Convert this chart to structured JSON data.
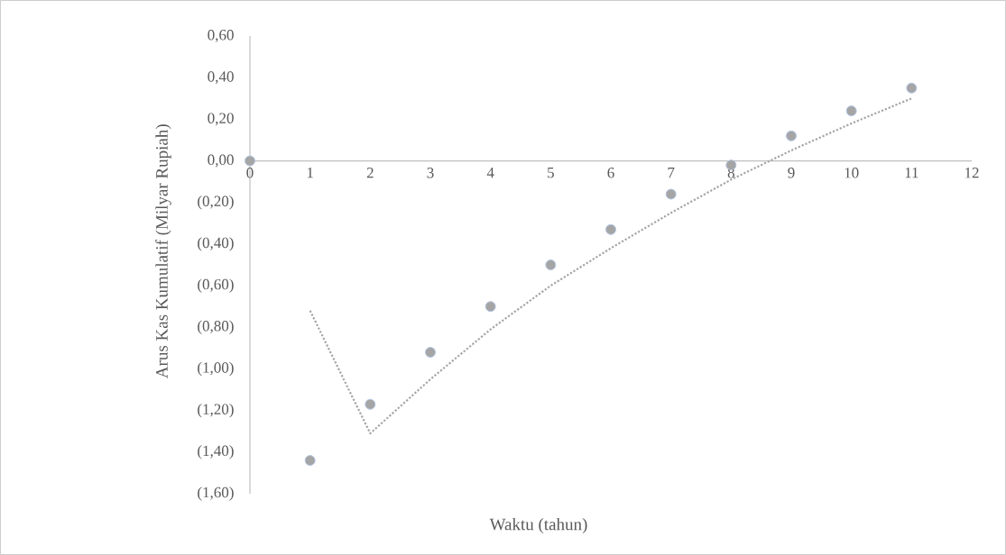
{
  "chart_data": {
    "type": "scatter",
    "xlabel": "Waktu (tahun)",
    "ylabel": "Arus Kas Kumulatif (Milyar Rupiah)",
    "x": [
      0,
      1,
      2,
      3,
      4,
      5,
      6,
      7,
      8,
      9,
      10,
      11
    ],
    "series": [
      {
        "color": "#a5a5a5",
        "values": [
          0,
          -1.44,
          -1.17,
          -0.92,
          -0.7,
          -0.5,
          -0.33,
          -0.16,
          -0.02,
          0.12,
          0.24,
          0.35
        ]
      },
      {
        "type": "line",
        "color": "#a5a5a5",
        "line_style": "dotted",
        "marker": "none",
        "x": [
          1,
          2,
          3,
          4,
          5,
          6,
          7,
          8,
          9,
          10,
          11
        ],
        "values": [
          -0.72,
          -1.31,
          -1.05,
          -0.81,
          -0.6,
          -0.42,
          -0.25,
          -0.09,
          0.05,
          0.18,
          0.3
        ]
      }
    ],
    "marker": "circle",
    "xlim": [
      0,
      12
    ],
    "ylim": [
      -1.6,
      0.6
    ],
    "xticks": [
      0,
      1,
      2,
      3,
      4,
      5,
      6,
      7,
      8,
      9,
      10,
      11,
      12
    ],
    "yticks": [
      {
        "value": 0.6,
        "label": "0,60"
      },
      {
        "value": 0.4,
        "label": "0,40"
      },
      {
        "value": 0.2,
        "label": "0,20"
      },
      {
        "value": 0,
        "label": "0,00"
      },
      {
        "value": -0.2,
        "label": "(0,20)"
      },
      {
        "value": -0.4,
        "label": "(0,40)"
      },
      {
        "value": -0.6,
        "label": "(0,60)"
      },
      {
        "value": -0.8,
        "label": "(0,80)"
      },
      {
        "value": -1.0,
        "label": "(1,00)"
      },
      {
        "value": -1.2,
        "label": "(1,20)"
      },
      {
        "value": -1.4,
        "label": "(1,40)"
      },
      {
        "value": -1.6,
        "label": "(1,60)"
      }
    ],
    "grid": false
  }
}
